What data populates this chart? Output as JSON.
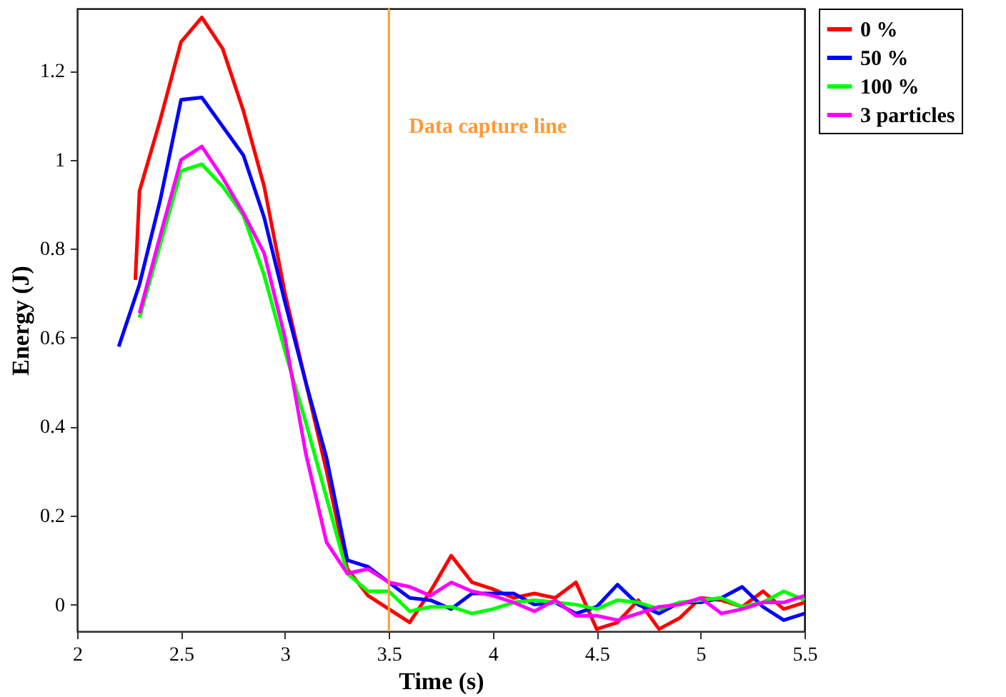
{
  "chart_data": {
    "type": "line",
    "xlabel": "Time (s)",
    "ylabel": "Energy (J)",
    "xlim": [
      2,
      5.5
    ],
    "ylim": [
      -0.06,
      1.34
    ],
    "xticks": [
      2,
      2.5,
      3,
      3.5,
      4,
      4.5,
      5,
      5.5
    ],
    "yticks": [
      0,
      0.2,
      0.4,
      0.6,
      0.8,
      1,
      1.2
    ],
    "grid": false,
    "legend": "top right",
    "marker": "none",
    "line_style": "solid",
    "series": [
      {
        "name": "0 %",
        "color": "#ff0000",
        "x": [
          2.28,
          2.3,
          2.4,
          2.5,
          2.6,
          2.7,
          2.8,
          2.9,
          3.0,
          3.1,
          3.2,
          3.3,
          3.4,
          3.5,
          3.6,
          3.7,
          3.8,
          3.9,
          4.0,
          4.1,
          4.2,
          4.3,
          4.4,
          4.5,
          4.6,
          4.7,
          4.8,
          4.9,
          5.0,
          5.1,
          5.2,
          5.3,
          5.4,
          5.5
        ],
        "values": [
          0.73,
          0.93,
          1.09,
          1.265,
          1.32,
          1.25,
          1.11,
          0.94,
          0.7,
          0.5,
          0.3,
          0.08,
          0.02,
          -0.01,
          -0.04,
          0.03,
          0.11,
          0.05,
          0.035,
          0.015,
          0.025,
          0.015,
          0.05,
          -0.055,
          -0.04,
          0.01,
          -0.055,
          -0.03,
          0.015,
          0.01,
          -0.005,
          0.03,
          -0.01,
          0.005
        ]
      },
      {
        "name": "50 %",
        "color": "#0000ff",
        "x": [
          2.2,
          2.3,
          2.4,
          2.5,
          2.6,
          2.7,
          2.8,
          2.9,
          3.0,
          3.1,
          3.2,
          3.3,
          3.4,
          3.5,
          3.6,
          3.7,
          3.8,
          3.9,
          4.0,
          4.1,
          4.2,
          4.3,
          4.4,
          4.5,
          4.6,
          4.7,
          4.8,
          4.9,
          5.0,
          5.1,
          5.2,
          5.3,
          5.4,
          5.5
        ],
        "values": [
          0.58,
          0.72,
          0.91,
          1.135,
          1.14,
          1.075,
          1.01,
          0.87,
          0.68,
          0.5,
          0.33,
          0.1,
          0.085,
          0.05,
          0.015,
          0.01,
          -0.01,
          0.025,
          0.025,
          0.025,
          0.0,
          0.005,
          -0.02,
          -0.005,
          0.045,
          0.0,
          -0.02,
          0.005,
          0.005,
          0.015,
          0.04,
          -0.005,
          -0.035,
          -0.02
        ]
      },
      {
        "name": "100 %",
        "color": "#00ff00",
        "x": [
          2.3,
          2.4,
          2.5,
          2.6,
          2.7,
          2.8,
          2.9,
          3.0,
          3.1,
          3.2,
          3.3,
          3.4,
          3.5,
          3.6,
          3.7,
          3.8,
          3.9,
          4.0,
          4.1,
          4.2,
          4.3,
          4.4,
          4.5,
          4.6,
          4.7,
          4.8,
          4.9,
          5.0,
          5.1,
          5.2,
          5.3,
          5.4,
          5.5
        ],
        "values": [
          0.645,
          0.81,
          0.975,
          0.99,
          0.94,
          0.875,
          0.74,
          0.57,
          0.41,
          0.24,
          0.07,
          0.03,
          0.03,
          -0.015,
          -0.005,
          -0.005,
          -0.02,
          -0.01,
          0.005,
          0.01,
          0.005,
          0.0,
          -0.01,
          0.01,
          0.005,
          -0.01,
          0.005,
          0.01,
          0.015,
          -0.005,
          0.005,
          0.03,
          0.01
        ]
      },
      {
        "name": "3 particles",
        "color": "#ff00ff",
        "x": [
          2.3,
          2.4,
          2.5,
          2.6,
          2.7,
          2.8,
          2.9,
          3.0,
          3.1,
          3.2,
          3.3,
          3.4,
          3.5,
          3.6,
          3.7,
          3.8,
          3.9,
          4.0,
          4.1,
          4.2,
          4.3,
          4.4,
          4.5,
          4.6,
          4.7,
          4.8,
          4.9,
          5.0,
          5.1,
          5.2,
          5.3,
          5.4,
          5.5
        ],
        "values": [
          0.655,
          0.83,
          1.0,
          1.03,
          0.96,
          0.88,
          0.79,
          0.6,
          0.34,
          0.14,
          0.07,
          0.08,
          0.05,
          0.04,
          0.02,
          0.05,
          0.03,
          0.02,
          0.005,
          -0.015,
          0.01,
          -0.025,
          -0.025,
          -0.035,
          -0.02,
          -0.005,
          0.0,
          0.015,
          -0.02,
          -0.01,
          0.005,
          0.005,
          0.02
        ]
      }
    ],
    "ref_lines": [
      {
        "axis": "x",
        "value": 3.5,
        "label": "Data capture line",
        "color": "#ff9933",
        "line_style": "solid"
      }
    ]
  }
}
